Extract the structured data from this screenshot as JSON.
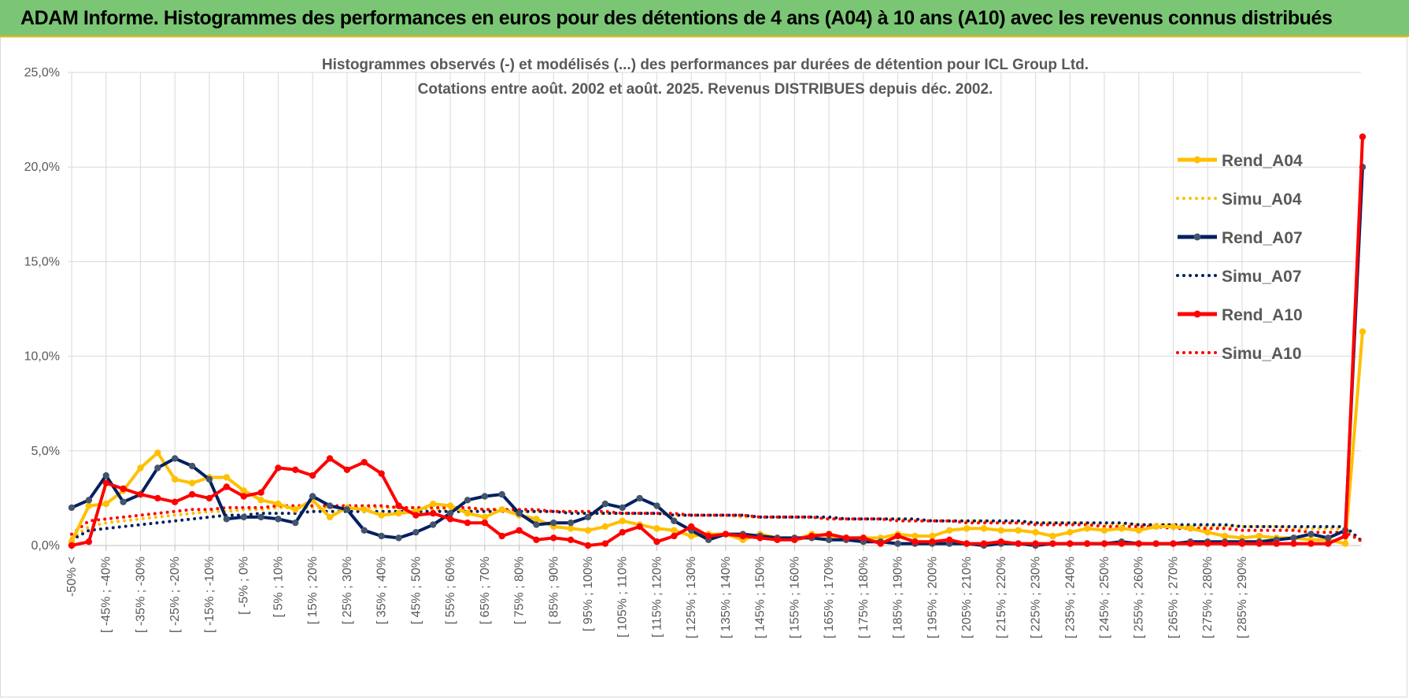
{
  "header": {
    "title": "ADAM Informe. Histogrammes des performances en euros pour des détentions de 4 ans (A04) à 10 ans (A10) avec les revenus connus distribués"
  },
  "chart_data": {
    "type": "line",
    "title": "Histogrammes observés (-) et modélisés (...) des performances par durées de détention pour ICL Group Ltd.",
    "subtitle": "Cotations entre août. 2002 et août. 2025. Revenus DISTRIBUES depuis déc. 2002.",
    "xlabel": "",
    "ylabel": "",
    "ylim": [
      0,
      25
    ],
    "y_ticks": [
      "0,0%",
      "5,0%",
      "10,0%",
      "15,0%",
      "20,0%",
      "25,0%"
    ],
    "grid": true,
    "legend_position": "right",
    "x_tick_labels": [
      "-50% <",
      "[ -45% ; -40%",
      "[ -35% ; -30%",
      "[ -25% ; -20%",
      "[ -15% ; -10%",
      "[ -5% ; 0%",
      "[ 5% ; 10%",
      "[ 15% ; 20%",
      "[ 25% ; 30%",
      "[ 35% ; 40%",
      "[ 45% ; 50%",
      "[ 55% ; 60%",
      "[ 65% ; 70%",
      "[ 75% ; 80%",
      "[ 85% ; 90%",
      "[ 95% ; 100%",
      "[ 105% ; 110%",
      "[ 115% ; 120%",
      "[ 125% ; 130%",
      "[ 135% ; 140%",
      "[ 145% ; 150%",
      "[ 155% ; 160%",
      "[ 165% ; 170%",
      "[ 175% ; 180%",
      "[ 185% ; 190%",
      "[ 195% ; 200%",
      "[ 205% ; 210%",
      "[ 215% ; 220%",
      "[ 225% ; 230%",
      "[ 235% ; 240%",
      "[ 245% ; 250%",
      "[ 255% ; 260%",
      "[ 265% ; 270%",
      "[ 275% ; 280%",
      "[ 285% ; 290%"
    ],
    "series": [
      {
        "name": "Rend_A04",
        "style": "solid",
        "color": "#ffc000",
        "values": [
          0.2,
          2.1,
          2.2,
          2.9,
          4.1,
          4.9,
          3.5,
          3.3,
          3.6,
          3.6,
          2.9,
          2.4,
          2.2,
          1.9,
          2.4,
          1.5,
          2.0,
          1.9,
          1.6,
          1.7,
          1.8,
          2.2,
          2.1,
          1.7,
          1.5,
          1.9,
          1.6,
          1.4,
          1.0,
          0.9,
          0.8,
          1.0,
          1.3,
          1.1,
          0.9,
          0.8,
          0.5,
          0.6,
          0.6,
          0.3,
          0.6,
          0.4,
          0.3,
          0.6,
          0.5,
          0.4,
          0.4,
          0.4,
          0.6,
          0.5,
          0.5,
          0.8,
          0.9,
          0.9,
          0.8,
          0.8,
          0.7,
          0.5,
          0.7,
          0.9,
          0.8,
          0.9,
          0.8,
          1.0,
          1.0,
          0.9,
          0.7,
          0.5,
          0.4,
          0.5,
          0.4,
          0.4,
          0.3,
          0.3,
          0.1,
          11.3
        ]
      },
      {
        "name": "Simu_A04",
        "style": "dotted",
        "color": "#ffc000",
        "values": [
          0.4,
          1.0,
          1.2,
          1.3,
          1.4,
          1.5,
          1.6,
          1.7,
          1.8,
          1.8,
          1.9,
          1.9,
          2.0,
          2.0,
          2.0,
          2.0,
          2.0,
          2.0,
          2.0,
          2.0,
          2.0,
          1.9,
          1.9,
          1.9,
          1.9,
          1.9,
          1.8,
          1.8,
          1.8,
          1.8,
          1.7,
          1.7,
          1.7,
          1.7,
          1.7,
          1.6,
          1.6,
          1.6,
          1.6,
          1.5,
          1.5,
          1.5,
          1.5,
          1.5,
          1.4,
          1.4,
          1.4,
          1.4,
          1.4,
          1.3,
          1.3,
          1.3,
          1.3,
          1.3,
          1.2,
          1.2,
          1.2,
          1.2,
          1.2,
          1.2,
          1.1,
          1.1,
          1.1,
          1.1,
          1.1,
          1.0,
          1.0,
          1.0,
          1.0,
          1.0,
          1.0,
          0.9,
          0.9,
          0.9,
          0.9,
          0.2
        ]
      },
      {
        "name": "Rend_A07",
        "style": "solid",
        "color": "#002060",
        "values": [
          2.0,
          2.4,
          3.7,
          2.3,
          2.7,
          4.1,
          4.6,
          4.2,
          3.5,
          1.4,
          1.5,
          1.5,
          1.4,
          1.2,
          2.6,
          2.1,
          1.9,
          0.8,
          0.5,
          0.4,
          0.7,
          1.1,
          1.7,
          2.4,
          2.6,
          2.7,
          1.7,
          1.1,
          1.2,
          1.2,
          1.5,
          2.2,
          2.0,
          2.5,
          2.1,
          1.3,
          0.8,
          0.3,
          0.6,
          0.6,
          0.5,
          0.4,
          0.4,
          0.4,
          0.3,
          0.3,
          0.2,
          0.2,
          0.1,
          0.1,
          0.1,
          0.1,
          0.1,
          0.0,
          0.1,
          0.1,
          0.0,
          0.1,
          0.1,
          0.1,
          0.1,
          0.2,
          0.1,
          0.1,
          0.1,
          0.2,
          0.2,
          0.2,
          0.2,
          0.2,
          0.3,
          0.4,
          0.6,
          0.4,
          0.8,
          20.0
        ]
      },
      {
        "name": "Simu_A07",
        "style": "dotted",
        "color": "#002060",
        "values": [
          0.3,
          0.8,
          0.9,
          1.0,
          1.1,
          1.2,
          1.3,
          1.4,
          1.5,
          1.6,
          1.6,
          1.7,
          1.7,
          1.7,
          1.8,
          1.8,
          1.8,
          1.8,
          1.8,
          1.8,
          1.8,
          1.8,
          1.8,
          1.8,
          1.8,
          1.8,
          1.8,
          1.8,
          1.8,
          1.7,
          1.7,
          1.7,
          1.7,
          1.7,
          1.7,
          1.6,
          1.6,
          1.6,
          1.6,
          1.6,
          1.5,
          1.5,
          1.5,
          1.5,
          1.5,
          1.4,
          1.4,
          1.4,
          1.4,
          1.4,
          1.3,
          1.3,
          1.3,
          1.3,
          1.3,
          1.3,
          1.2,
          1.2,
          1.2,
          1.2,
          1.2,
          1.2,
          1.1,
          1.1,
          1.1,
          1.1,
          1.1,
          1.1,
          1.0,
          1.0,
          1.0,
          1.0,
          1.0,
          1.0,
          1.0,
          0.2
        ]
      },
      {
        "name": "Rend_A10",
        "style": "solid",
        "color": "#ff0000",
        "values": [
          0.0,
          0.2,
          3.3,
          3.0,
          2.7,
          2.5,
          2.3,
          2.7,
          2.5,
          3.1,
          2.6,
          2.8,
          4.1,
          4.0,
          3.7,
          4.6,
          4.0,
          4.4,
          3.8,
          2.1,
          1.6,
          1.7,
          1.4,
          1.2,
          1.2,
          0.5,
          0.8,
          0.3,
          0.4,
          0.3,
          0.0,
          0.1,
          0.7,
          1.0,
          0.2,
          0.5,
          1.0,
          0.5,
          0.6,
          0.5,
          0.4,
          0.3,
          0.3,
          0.5,
          0.6,
          0.4,
          0.4,
          0.1,
          0.5,
          0.2,
          0.2,
          0.3,
          0.1,
          0.1,
          0.2,
          0.1,
          0.1,
          0.1,
          0.1,
          0.1,
          0.1,
          0.1,
          0.1,
          0.1,
          0.1,
          0.1,
          0.1,
          0.1,
          0.1,
          0.1,
          0.1,
          0.1,
          0.1,
          0.1,
          0.5,
          21.6
        ]
      },
      {
        "name": "Simu_A10",
        "style": "dotted",
        "color": "#ff0000",
        "values": [
          0.6,
          1.3,
          1.4,
          1.5,
          1.6,
          1.7,
          1.8,
          1.9,
          1.9,
          2.0,
          2.0,
          2.0,
          2.1,
          2.1,
          2.1,
          2.1,
          2.1,
          2.1,
          2.1,
          2.0,
          2.0,
          2.0,
          2.0,
          2.0,
          1.9,
          1.9,
          1.9,
          1.9,
          1.8,
          1.8,
          1.8,
          1.8,
          1.7,
          1.7,
          1.7,
          1.7,
          1.6,
          1.6,
          1.6,
          1.6,
          1.5,
          1.5,
          1.5,
          1.5,
          1.4,
          1.4,
          1.4,
          1.4,
          1.3,
          1.3,
          1.3,
          1.3,
          1.2,
          1.2,
          1.2,
          1.2,
          1.1,
          1.1,
          1.1,
          1.1,
          1.0,
          1.0,
          1.0,
          1.0,
          0.9,
          0.9,
          0.9,
          0.9,
          0.8,
          0.8,
          0.8,
          0.8,
          0.7,
          0.7,
          0.7,
          0.2
        ]
      }
    ]
  }
}
